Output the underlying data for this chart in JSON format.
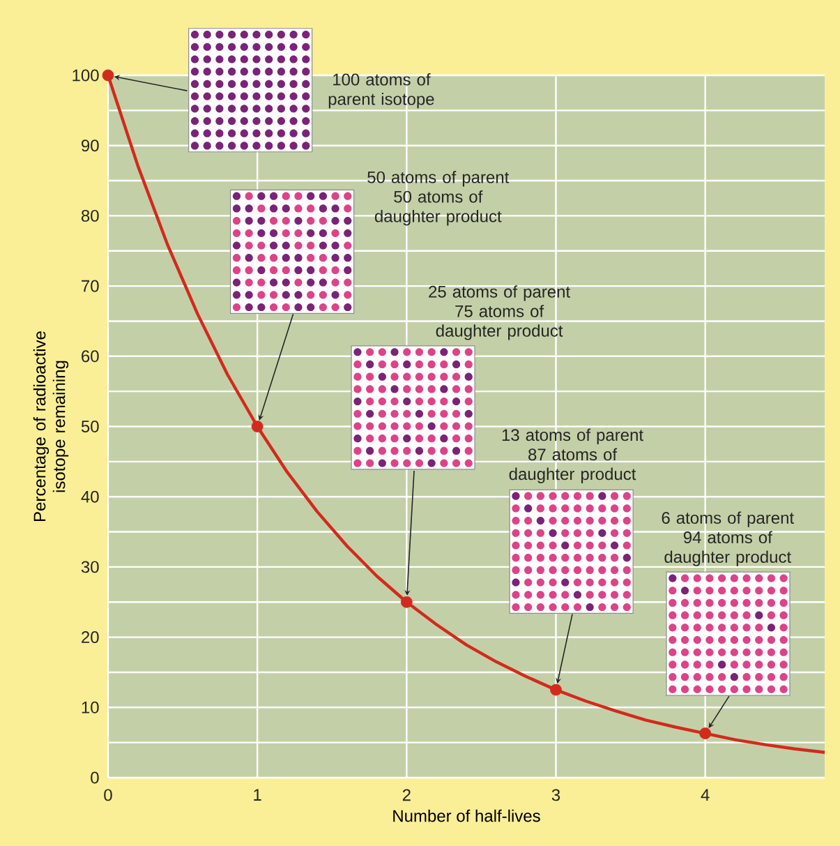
{
  "chart_data": {
    "type": "line",
    "xlabel": "Number of half-lives",
    "ylabel": "Percentage of radioactive isotope remaining",
    "xlim": [
      0,
      4.8
    ],
    "ylim": [
      0,
      100
    ],
    "xticks": [
      0,
      1,
      2,
      3,
      4
    ],
    "yticks": [
      0,
      {
        "value": 5,
        "label": null
      },
      10,
      {
        "value": 15,
        "label": null
      },
      20,
      {
        "value": 25,
        "label": null
      },
      30,
      {
        "value": 35,
        "label": null
      },
      40,
      {
        "value": 45,
        "label": null
      },
      50,
      {
        "value": 55,
        "label": null
      },
      60,
      {
        "value": 65,
        "label": null
      },
      70,
      {
        "value": 75,
        "label": null
      },
      80,
      {
        "value": 85,
        "label": null
      },
      90,
      {
        "value": 95,
        "label": null
      },
      100
    ],
    "grid": true,
    "annotations": [
      "100 atoms of parent isotope",
      "50 atoms of parent 50 atoms of daughter product",
      "25 atoms of parent 75 atoms of daughter product",
      "13 atoms of parent 87 atoms of daughter product",
      "6 atoms of parent 94 atoms of daughter product"
    ],
    "series": [
      {
        "marker": "none",
        "color": "#d32a1e",
        "x": [
          0,
          0.2,
          0.4,
          0.6,
          0.8,
          1,
          1.2,
          1.4,
          1.6,
          1.8,
          2,
          2.2,
          2.4,
          2.6,
          2.8,
          3,
          3.2,
          3.4,
          3.6,
          3.8,
          4,
          4.2,
          4.4,
          4.6,
          4.8
        ],
        "values": [
          100,
          87.1,
          75.8,
          66.0,
          57.4,
          50,
          43.5,
          37.9,
          33.0,
          28.7,
          25,
          21.8,
          18.9,
          16.5,
          14.4,
          12.5,
          10.9,
          9.5,
          8.2,
          7.2,
          6.3,
          5.4,
          4.7,
          4.1,
          3.6
        ]
      },
      {
        "type": "scatter",
        "marker": "circle",
        "color": "#d32a1e",
        "x": [
          0,
          1,
          2,
          3,
          4
        ],
        "values": [
          100,
          50,
          25,
          12.5,
          6.3
        ]
      }
    ]
  }
}
